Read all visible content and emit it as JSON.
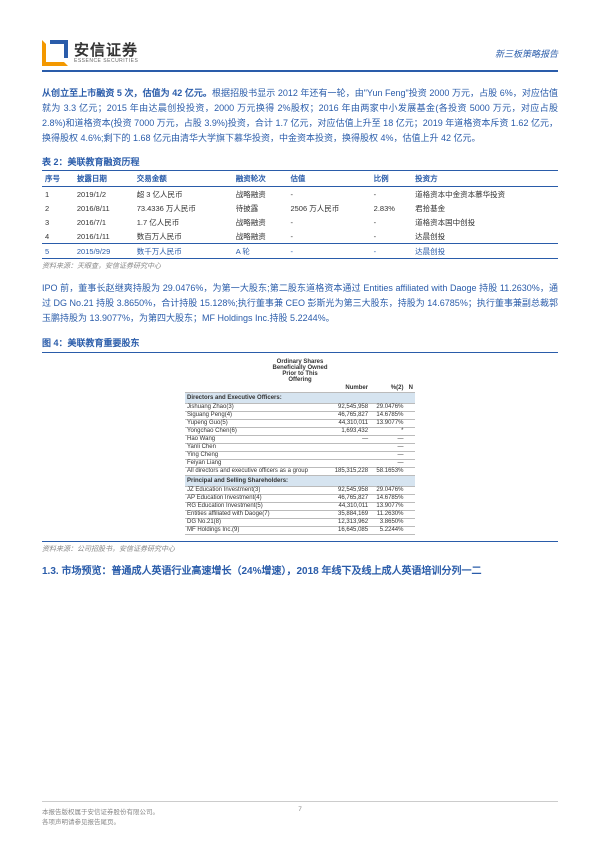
{
  "header": {
    "logo_cn": "安信证券",
    "logo_en": "ESSENCE SECURITIES",
    "doc_type": "新三板策略报告"
  },
  "para1": "从创立至上市融资 5 次，估值为 42 亿元。根据招股书显示 2012 年还有一轮，由\"Yun Feng\"投资 2000 万元，占股 6%，对应估值就为 3.3 亿元；2015 年由达晨创投投资，2000 万元换得 2%股权；2016 年由两家中小发展基金(各投资 5000 万元，对应占股 2.8%)和道格资本(投资 7000 万元，占股 3.9%)投资，合计 1.7 亿元，对应估值上升至 18 亿元；2019 年道格资本斥资 1.62 亿元，换得股权 4.6%;剩下的 1.68 亿元由清华大学旗下慕华投资，中金资本投资，换得股权 4%，估值上升 42 亿元。",
  "table2": {
    "title": "表 2：美联教育融资历程",
    "headers": [
      "序号",
      "披露日期",
      "交易金额",
      "融资轮次",
      "估值",
      "比例",
      "投资方"
    ],
    "rows": [
      [
        "1",
        "2019/1/2",
        "超 3 亿人民币",
        "战略融资",
        "-",
        "-",
        "道格资本中金资本慕华投资"
      ],
      [
        "2",
        "2016/8/11",
        "73.4336 万人民币",
        "待披露",
        "2506 万人民币",
        "2.83%",
        "君拾基金"
      ],
      [
        "3",
        "2016/7/1",
        "1.7 亿人民币",
        "战略融资",
        "-",
        "-",
        "道格资本国中创投"
      ],
      [
        "4",
        "2016/1/11",
        "数百万人民币",
        "战略融资",
        "-",
        "-",
        "达晨创投"
      ],
      [
        "5",
        "2015/9/29",
        "数千万人民币",
        "A 轮",
        "-",
        "-",
        "达晨创投"
      ]
    ],
    "source": "资料来源：天眼查，安信证券研究中心"
  },
  "para2": "IPO 前，董事长赵继爽持股为 29.0476%，为第一大股东;第二股东道格资本通过 Entities affiliated with Daoge 持股 11.2630%，通过 DG No.21 持股 3.8650%，合计持股 15.128%;执行董事兼 CEO 彭斯光为第三大股东，持股为 14.6785%；执行董事兼副总裁郭玉鹏持股为 13.9077%，为第四大股东；MF Holdings Inc.持股 5.2244%。",
  "fig4": {
    "title": "图 4：美联教育重要股东",
    "hdr1": "Ordinary Shares",
    "hdr2": "Beneficially Owned",
    "hdr3": "Prior to This",
    "hdr4": "Offering",
    "cols": [
      "",
      "Number",
      "%(2)",
      "N"
    ],
    "grp1": "Directors and Executive Officers:",
    "grp1_rows": [
      [
        "Jishuang Zhao(3)",
        "92,545,958",
        "29.0476%"
      ],
      [
        "Siguang Peng(4)",
        "46,765,827",
        "14.6785%"
      ],
      [
        "Yupeng Guo(5)",
        "44,310,011",
        "13.9077%"
      ],
      [
        "Yongchao Chen(6)",
        "1,693,432",
        "*"
      ],
      [
        "Hao Wang",
        "—",
        "—"
      ],
      [
        "Yanli Chen",
        "",
        "—"
      ],
      [
        "Ying Cheng",
        "",
        "—"
      ],
      [
        "Feiyan Liang",
        "",
        "—"
      ],
      [
        "All directors and executive officers as a group",
        "185,315,228",
        "58.1653%"
      ]
    ],
    "grp2": "Principal and Selling Shareholders:",
    "grp2_rows": [
      [
        "JZ Education Investment(3)",
        "92,545,958",
        "29.0476%"
      ],
      [
        "AP Education Investment(4)",
        "46,765,827",
        "14.6785%"
      ],
      [
        "RG Education Investment(5)",
        "44,310,011",
        "13.9077%"
      ],
      [
        "Entities affiliated with Daoge(7)",
        "35,884,169",
        "11.2630%"
      ],
      [
        "DG No.21(8)",
        "12,313,962",
        "3.8650%"
      ],
      [
        "MF Holdings Inc.(9)",
        "16,645,085",
        "5.2244%"
      ]
    ],
    "source": "资料来源：公司招股书，安信证券研究中心"
  },
  "section13": "1.3. 市场预览：普通成人英语行业高速增长（24%增速），2018 年线下及线上成人英语培训分列一二",
  "footer": {
    "l1": "本报告版权属于安信证券股份有限公司。",
    "l2": "各项声明请参见报告尾页。",
    "page": "7"
  }
}
